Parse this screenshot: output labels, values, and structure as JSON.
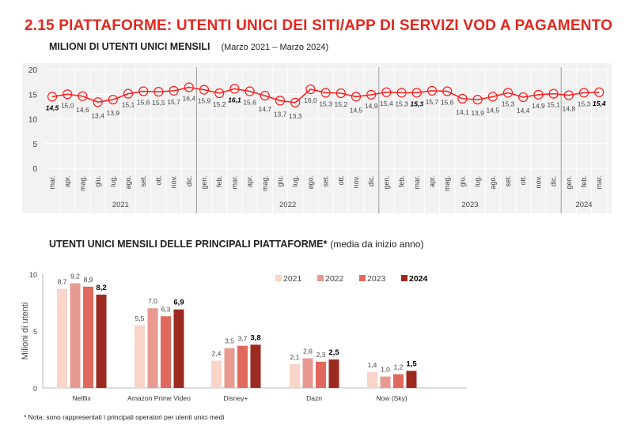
{
  "page_title": "2.15 PIATTAFORME: UTENTI UNICI DEI SITI/APP DI SERVIZI VOD A PAGAMENTO",
  "colors": {
    "title": "#e5261e",
    "line": "#ff1a1a",
    "bars": [
      "#f8d5c8",
      "#e89a90",
      "#e0685c",
      "#9c2a20"
    ]
  },
  "chart_data": [
    {
      "type": "line",
      "title": "MILIONI DI UTENTI UNICI MENSILI",
      "subtitle": "(Marzo 2021 – Marzo 2024)",
      "ylim": [
        0,
        20
      ],
      "yticks": [
        "0",
        "5",
        "10",
        "15",
        "20"
      ],
      "grid": true,
      "years": [
        {
          "label": "2021",
          "months": [
            "mar.",
            "apr.",
            "mag.",
            "giu.",
            "lug.",
            "ago.",
            "set.",
            "ott.",
            "nov.",
            "dic."
          ]
        },
        {
          "label": "2022",
          "months": [
            "gen.",
            "feb.",
            "mar.",
            "apr.",
            "mag.",
            "giu.",
            "lug.",
            "ago.",
            "set.",
            "ott.",
            "nov.",
            "dic."
          ]
        },
        {
          "label": "2023",
          "months": [
            "gen.",
            "feb.",
            "mar.",
            "apr.",
            "mag.",
            "giu.",
            "lug.",
            "ago.",
            "set.",
            "ott.",
            "nov.",
            "dic."
          ]
        },
        {
          "label": "2024",
          "months": [
            "gen.",
            "feb.",
            "mar."
          ]
        }
      ],
      "values": [
        14.5,
        15.0,
        14.6,
        13.4,
        13.9,
        15.1,
        15.6,
        15.5,
        15.7,
        16.4,
        15.9,
        15.2,
        16.1,
        15.6,
        14.7,
        13.7,
        13.3,
        16.0,
        15.3,
        15.2,
        14.5,
        14.9,
        15.4,
        15.3,
        15.3,
        15.7,
        15.6,
        14.1,
        13.9,
        14.5,
        15.3,
        14.4,
        14.9,
        15.1,
        14.8,
        15.3,
        15.4
      ],
      "labels": [
        "14,5",
        "15,0",
        "14,6",
        "13,4",
        "13,9",
        "15,1",
        "15,6",
        "15,5",
        "15,7",
        "16,4",
        "15,9",
        "15,2",
        "16,1",
        "15,6",
        "14,7",
        "13,7",
        "13,3",
        "16,0",
        "15,3",
        "15,2",
        "14,5",
        "14,9",
        "15,4",
        "15,3",
        "15,3",
        "15,7",
        "15,6",
        "14,1",
        "13,9",
        "14,5",
        "15,3",
        "14,4",
        "14,9",
        "15,1",
        "14,8",
        "15,3",
        "15,4"
      ],
      "bold_indices": [
        0,
        12,
        24,
        36
      ]
    },
    {
      "type": "bar",
      "title": "UTENTI UNICI MENSILI DELLE PRINCIPALI PIATTAFORME*",
      "subtitle": "(media da inizio anno)",
      "ylabel": "Milioni di utenti",
      "ylim": [
        0,
        10
      ],
      "yticks": [
        "0",
        "5",
        "10"
      ],
      "legend": "top-right",
      "categories": [
        "Netflix",
        "Amazon Prime Video",
        "Disney+",
        "Dazn",
        "Now (Sky)"
      ],
      "series": [
        {
          "name": "2021",
          "values": [
            8.7,
            5.5,
            2.4,
            2.1,
            1.4
          ],
          "labels": [
            "8,7",
            "5,5",
            "2,4",
            "2,1",
            "1,4"
          ]
        },
        {
          "name": "2022",
          "values": [
            9.2,
            7.0,
            3.5,
            2.6,
            1.0
          ],
          "labels": [
            "9,2",
            "7,0",
            "3,5",
            "2,6",
            "1,0"
          ]
        },
        {
          "name": "2023",
          "values": [
            8.9,
            6.3,
            3.7,
            2.3,
            1.2
          ],
          "labels": [
            "8,9",
            "6,3",
            "3,7",
            "2,3",
            "1,2"
          ]
        },
        {
          "name": "2024",
          "values": [
            8.2,
            6.9,
            3.8,
            2.5,
            1.5
          ],
          "labels": [
            "8,2",
            "6,9",
            "3,8",
            "2,5",
            "1,5"
          ]
        }
      ]
    }
  ],
  "note": "* Nota: sono rappresentati i principali operatori per utenti unici medi"
}
